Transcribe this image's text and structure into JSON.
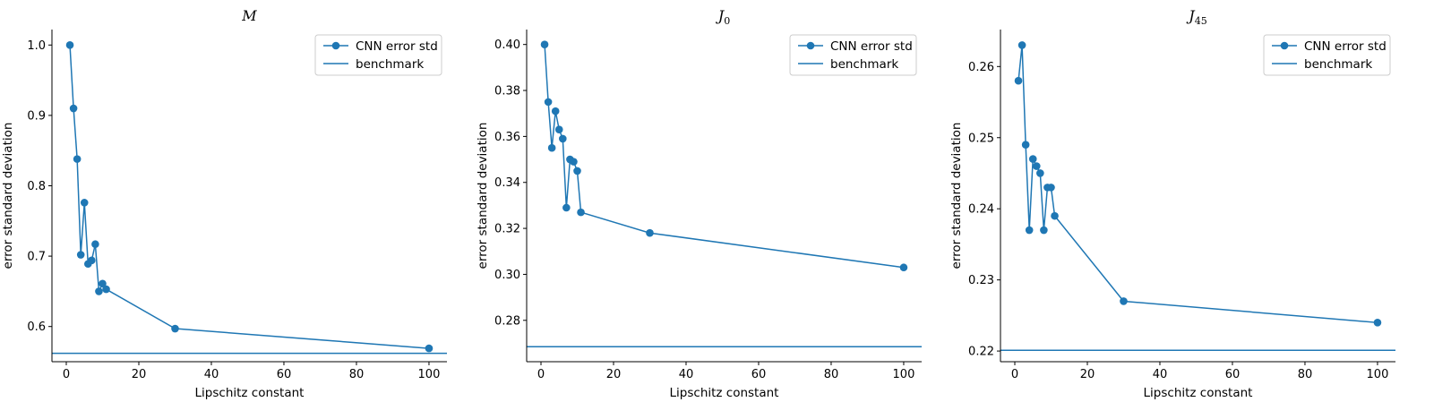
{
  "colors": {
    "series": "#1f77b4",
    "axis": "#000000",
    "legend_border": "#cccccc"
  },
  "chart_data": [
    {
      "type": "line",
      "title": "M",
      "title_sub": "",
      "xlabel": "Lipschitz constant",
      "ylabel": "error standard deviation",
      "xlim": [
        -3.95,
        104.95
      ],
      "ylim": [
        0.55,
        1.022
      ],
      "xticks": [
        0,
        20,
        40,
        60,
        80,
        100
      ],
      "xtick_labels": [
        "0",
        "20",
        "40",
        "60",
        "80",
        "100"
      ],
      "yticks": [
        0.6,
        0.7,
        0.8,
        0.9,
        1.0
      ],
      "ytick_labels": [
        "0.6",
        "0.7",
        "0.8",
        "0.9",
        "1.0"
      ],
      "legend": {
        "position": "top-right",
        "entries": [
          "CNN error std",
          "benchmark"
        ]
      },
      "series": [
        {
          "name": "CNN error std",
          "marker": "circle",
          "x": [
            1,
            2,
            3,
            4,
            5,
            6,
            7,
            8,
            9,
            10,
            11,
            30,
            100
          ],
          "y": [
            1.0,
            0.91,
            0.838,
            0.702,
            0.776,
            0.689,
            0.694,
            0.717,
            0.65,
            0.661,
            0.653,
            0.597,
            0.569
          ]
        },
        {
          "name": "benchmark",
          "hline": 0.562
        }
      ]
    },
    {
      "type": "line",
      "title": "J",
      "title_sub": "0",
      "xlabel": "Lipschitz constant",
      "ylabel": "error standard deviation",
      "xlim": [
        -3.95,
        104.95
      ],
      "ylim": [
        0.262,
        0.4065
      ],
      "xticks": [
        0,
        20,
        40,
        60,
        80,
        100
      ],
      "xtick_labels": [
        "0",
        "20",
        "40",
        "60",
        "80",
        "100"
      ],
      "yticks": [
        0.28,
        0.3,
        0.32,
        0.34,
        0.36,
        0.38,
        0.4
      ],
      "ytick_labels": [
        "0.28",
        "0.30",
        "0.32",
        "0.34",
        "0.36",
        "0.38",
        "0.40"
      ],
      "legend": {
        "position": "top-right",
        "entries": [
          "CNN error std",
          "benchmark"
        ]
      },
      "series": [
        {
          "name": "CNN error std",
          "marker": "circle",
          "x": [
            1,
            2,
            3,
            4,
            5,
            6,
            7,
            8,
            9,
            10,
            11,
            30,
            100
          ],
          "y": [
            0.4,
            0.375,
            0.355,
            0.371,
            0.363,
            0.359,
            0.329,
            0.35,
            0.349,
            0.345,
            0.327,
            0.318,
            0.303
          ]
        },
        {
          "name": "benchmark",
          "hline": 0.2685
        }
      ]
    },
    {
      "type": "line",
      "title": "J",
      "title_sub": "45",
      "xlabel": "Lipschitz constant",
      "ylabel": "error standard deviation",
      "xlim": [
        -3.95,
        104.95
      ],
      "ylim": [
        0.2185,
        0.2652
      ],
      "xticks": [
        0,
        20,
        40,
        60,
        80,
        100
      ],
      "xtick_labels": [
        "0",
        "20",
        "40",
        "60",
        "80",
        "100"
      ],
      "yticks": [
        0.22,
        0.23,
        0.24,
        0.25,
        0.26
      ],
      "ytick_labels": [
        "0.22",
        "0.23",
        "0.24",
        "0.25",
        "0.26"
      ],
      "legend": {
        "position": "top-right",
        "entries": [
          "CNN error std",
          "benchmark"
        ]
      },
      "series": [
        {
          "name": "CNN error std",
          "marker": "circle",
          "x": [
            1,
            2,
            3,
            4,
            5,
            6,
            7,
            8,
            9,
            10,
            11,
            30,
            100
          ],
          "y": [
            0.258,
            0.263,
            0.249,
            0.237,
            0.247,
            0.246,
            0.245,
            0.237,
            0.243,
            0.243,
            0.239,
            0.227,
            0.224
          ]
        },
        {
          "name": "benchmark",
          "hline": 0.2201
        }
      ]
    }
  ]
}
